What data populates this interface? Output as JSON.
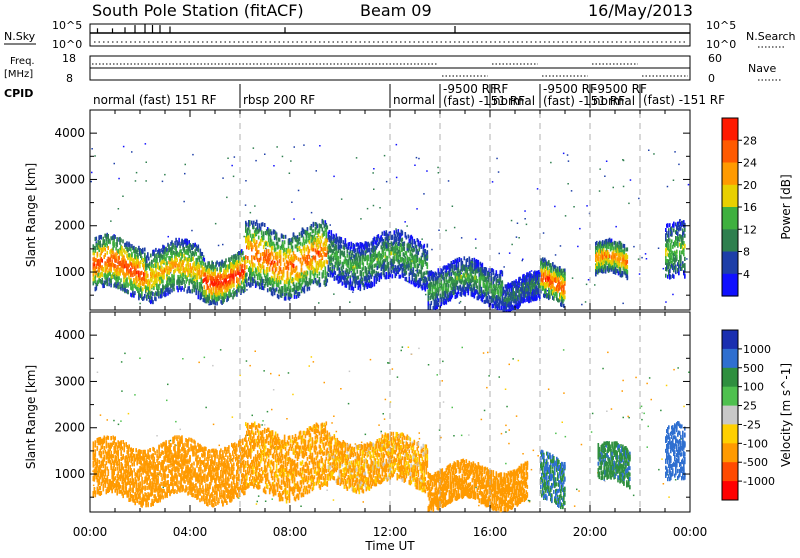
{
  "header": {
    "station": "South Pole Station (fitACF)",
    "beam": "Beam 09",
    "date": "16/May/2013"
  },
  "nsky_panel": {
    "label": "N.Sky",
    "left_ticks": [
      "10^5",
      "10^0"
    ],
    "right_label": "N.Search",
    "right_ticks": [
      "10^5",
      "10^0"
    ]
  },
  "freq_panel": {
    "label_line1": "Freq.",
    "label_line2": "[MHz]",
    "left_ticks": [
      "18",
      "8"
    ],
    "right_label": "Nave",
    "right_ticks": [
      "60",
      "0"
    ]
  },
  "cpid": {
    "label": "CPID",
    "segments": [
      {
        "start": 0,
        "end": 6,
        "text": "normal (fast) 151 RF"
      },
      {
        "start": 6,
        "end": 12,
        "text": "rbsp 200 RF"
      },
      {
        "start": 12,
        "end": 14,
        "text": "normal"
      },
      {
        "start": 14,
        "end": 16,
        "text": "-9500 RF\n(fast) -151 RF"
      },
      {
        "start": 16,
        "end": 18,
        "text": "RF\nnormal"
      },
      {
        "start": 18,
        "end": 20,
        "text": "-9500 RF\n(fast) -151 RF"
      },
      {
        "start": 20,
        "end": 22,
        "text": "-9500 RF\nnormal"
      },
      {
        "start": 22,
        "end": 24,
        "text": "(fast) -151 RF"
      }
    ]
  },
  "x_axis": {
    "label": "Time UT",
    "ticks": [
      "00:00",
      "04:00",
      "08:00",
      "12:00",
      "16:00",
      "20:00",
      "00:00"
    ]
  },
  "chart_data": [
    {
      "type": "heatmap",
      "quantity": "power",
      "xlabel": "Time UT",
      "ylabel": "Slant Range [km]",
      "xlim": [
        0,
        24
      ],
      "ylim": [
        180,
        4500
      ],
      "yticks": [
        1000,
        2000,
        3000,
        4000
      ],
      "colorbar": {
        "label": "Power [dB]",
        "ticks": [
          "4",
          "8",
          "12",
          "16",
          "20",
          "24",
          "28"
        ],
        "range": [
          0,
          32
        ]
      },
      "echo_regions": [
        {
          "t_start": 0.1,
          "t_end": 2.2,
          "r_low": 600,
          "r_high": 1700,
          "peak_db": 28
        },
        {
          "t_start": 2.2,
          "t_end": 4.5,
          "r_low": 500,
          "r_high": 1600,
          "peak_db": 22
        },
        {
          "t_start": 4.5,
          "t_end": 6.2,
          "r_low": 500,
          "r_high": 1400,
          "peak_db": 30
        },
        {
          "t_start": 6.2,
          "t_end": 9.5,
          "r_low": 600,
          "r_high": 2000,
          "peak_db": 26
        },
        {
          "t_start": 9.5,
          "t_end": 13.5,
          "r_low": 800,
          "r_high": 1800,
          "peak_db": 14
        },
        {
          "t_start": 13.5,
          "t_end": 16.5,
          "r_low": 400,
          "r_high": 1200,
          "peak_db": 14
        },
        {
          "t_start": 16.5,
          "t_end": 18.0,
          "r_low": 300,
          "r_high": 900,
          "peak_db": 10
        },
        {
          "t_start": 18.0,
          "t_end": 19.0,
          "r_low": 400,
          "r_high": 1200,
          "peak_db": 28
        },
        {
          "t_start": 20.2,
          "t_end": 21.5,
          "r_low": 900,
          "r_high": 1600,
          "peak_db": 24
        },
        {
          "t_start": 23.0,
          "t_end": 23.8,
          "r_low": 800,
          "r_high": 2000,
          "peak_db": 16
        }
      ]
    },
    {
      "type": "heatmap",
      "quantity": "velocity",
      "xlabel": "Time UT",
      "ylabel": "Slant Range [km]",
      "xlim": [
        0,
        24
      ],
      "ylim": [
        180,
        4500
      ],
      "yticks": [
        1000,
        2000,
        3000,
        4000
      ],
      "colorbar": {
        "label": "Velocity [m s^-1]",
        "ticks": [
          "1000",
          "500",
          "100",
          "25",
          "-25",
          "-100",
          "-500",
          "-1000"
        ]
      },
      "echo_regions": [
        {
          "t_start": 0.1,
          "t_end": 6.2,
          "r_low": 500,
          "r_high": 1700,
          "velocity": -300
        },
        {
          "t_start": 6.2,
          "t_end": 9.5,
          "r_low": 600,
          "r_high": 2000,
          "velocity": -200
        },
        {
          "t_start": 9.5,
          "t_end": 13.5,
          "r_low": 800,
          "r_high": 1800,
          "velocity": -150
        },
        {
          "t_start": 13.5,
          "t_end": 17.5,
          "r_low": 400,
          "r_high": 1200,
          "velocity": -250
        },
        {
          "t_start": 18.0,
          "t_end": 19.0,
          "r_low": 400,
          "r_high": 1400,
          "velocity": 500
        },
        {
          "t_start": 20.3,
          "t_end": 21.6,
          "r_low": 800,
          "r_high": 1600,
          "velocity": 400
        },
        {
          "t_start": 23.0,
          "t_end": 23.8,
          "r_low": 800,
          "r_high": 2000,
          "velocity": 800
        }
      ]
    }
  ]
}
